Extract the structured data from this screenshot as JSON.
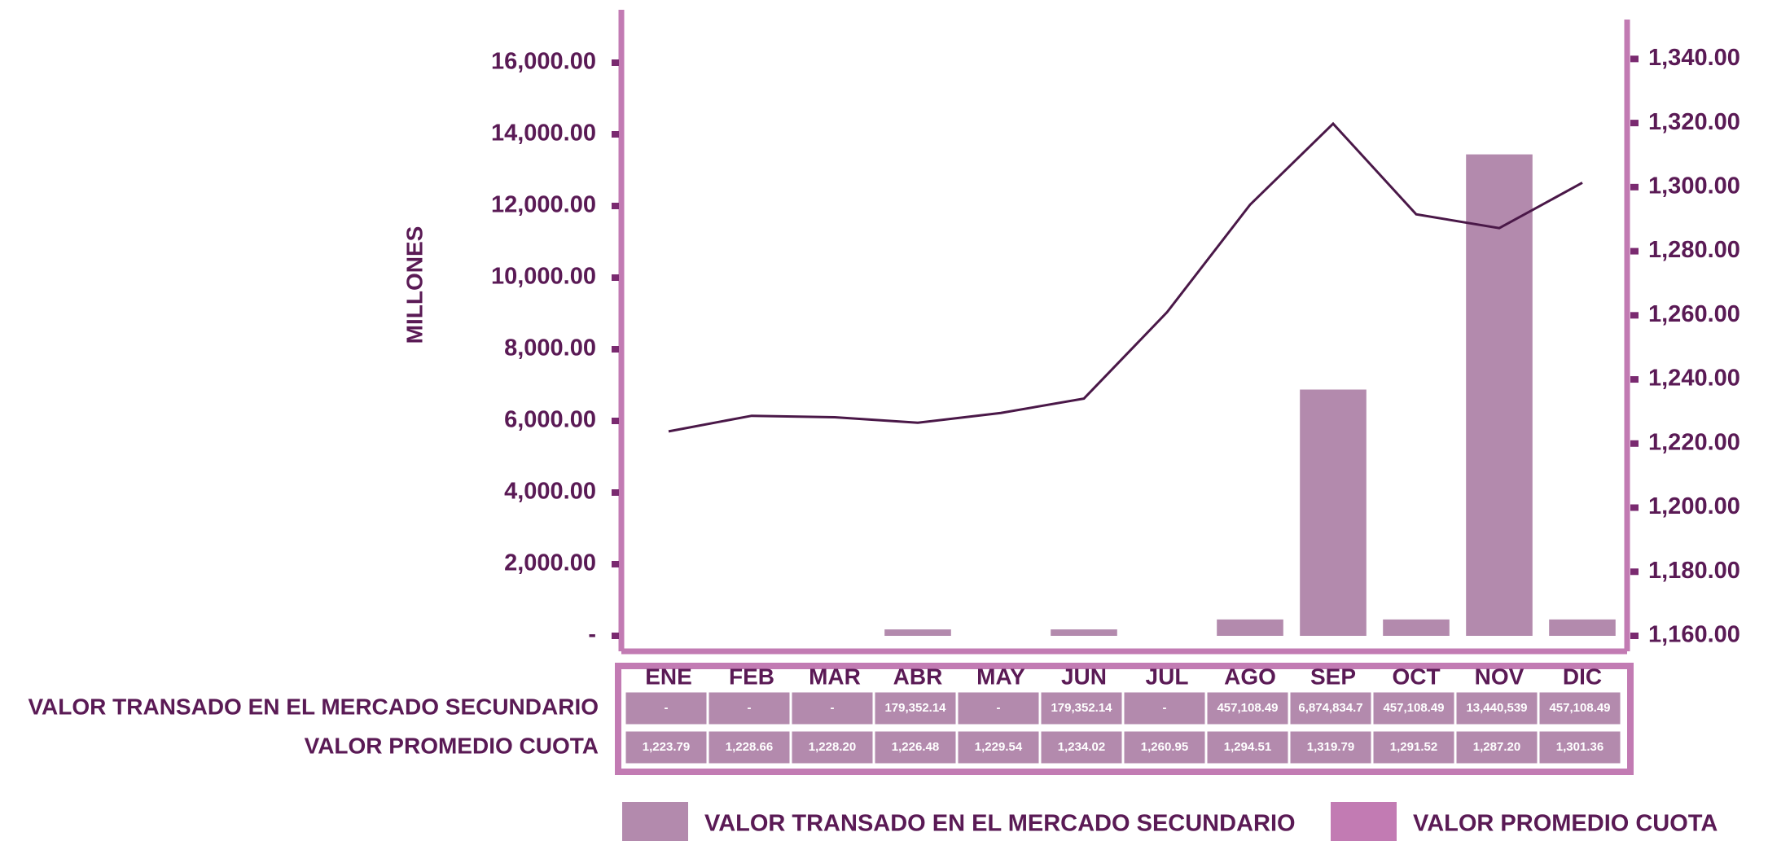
{
  "chart_data": {
    "type": "bar_line",
    "y_label": "MILLONES",
    "categories": [
      "ENE",
      "FEB",
      "MAR",
      "ABR",
      "MAY",
      "JUN",
      "JUL",
      "AGO",
      "SEP",
      "OCT",
      "NOV",
      "DIC"
    ],
    "series": [
      {
        "name": "VALOR TRANSADO EN EL MERCADO SECUNDARIO",
        "type": "bar",
        "color": "#b38aad",
        "values": [
          0,
          0,
          0,
          179.35214,
          0,
          179.35214,
          0,
          457.10849,
          6874.8347,
          457.10849,
          13440.539,
          457.10849
        ],
        "value_labels": [
          "-",
          "-",
          "-",
          "179,352.14",
          "-",
          "179,352.14",
          "-",
          "457,108.49",
          "6,874,834.7",
          "457,108.49",
          "13,440,539",
          "457,108.49"
        ]
      },
      {
        "name": "VALOR PROMEDIO CUOTA",
        "type": "line",
        "axis": "y2",
        "color": "#4a1848",
        "legend_color": "#c27bb3",
        "values": [
          1223.79,
          1228.66,
          1228.2,
          1226.48,
          1229.54,
          1234.02,
          1260.95,
          1294.51,
          1319.79,
          1291.52,
          1287.2,
          1301.36
        ],
        "value_labels": [
          "1,223.79",
          "1,228.66",
          "1,228.20",
          "1,226.48",
          "1,229.54",
          "1,234.02",
          "1,260.95",
          "1,294.51",
          "1,319.79",
          "1,291.52",
          "1,287.20",
          "1,301.36"
        ]
      }
    ],
    "ylim": [
      0,
      17000
    ],
    "yticks": [
      {
        "value": 0,
        "label": "-"
      },
      {
        "value": 2000,
        "label": "2,000.00"
      },
      {
        "value": 4000,
        "label": "4,000.00"
      },
      {
        "value": 6000,
        "label": "6,000.00"
      },
      {
        "value": 8000,
        "label": "8,000.00"
      },
      {
        "value": 10000,
        "label": "10,000.00"
      },
      {
        "value": 12000,
        "label": "12,000.00"
      },
      {
        "value": 14000,
        "label": "14,000.00"
      },
      {
        "value": 16000,
        "label": "16,000.00"
      }
    ],
    "y2lim": [
      1160,
      1350
    ],
    "y2ticks": [
      {
        "value": 1160,
        "label": "1,160.00"
      },
      {
        "value": 1180,
        "label": "1,180.00"
      },
      {
        "value": 1200,
        "label": "1,200.00"
      },
      {
        "value": 1220,
        "label": "1,220.00"
      },
      {
        "value": 1240,
        "label": "1,240.00"
      },
      {
        "value": 1260,
        "label": "1,260.00"
      },
      {
        "value": 1280,
        "label": "1,280.00"
      },
      {
        "value": 1300,
        "label": "1,300.00"
      },
      {
        "value": 1320,
        "label": "1,320.00"
      },
      {
        "value": 1340,
        "label": "1,340.00"
      }
    ],
    "legend": "bottom"
  }
}
